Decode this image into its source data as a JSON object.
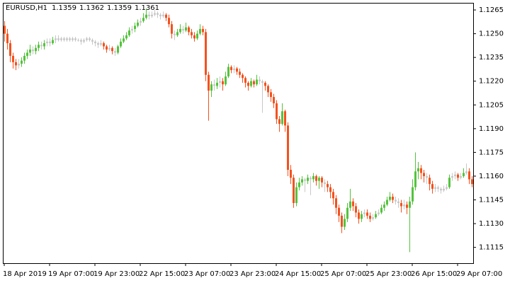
{
  "chart_data": {
    "type": "candlestick",
    "title": "EURUSD,H1",
    "quote": [
      1.1359,
      1.1362,
      1.1359,
      1.1361
    ],
    "colors": {
      "up": "#54c33c",
      "down": "#f4511e",
      "flat": "#c8c8c8"
    },
    "ylim": [
      1.1105,
      1.12695
    ],
    "yticks": [
      1.1265,
      {
        "value": 1.125,
        "label": "1.1250"
      },
      1.1235,
      {
        "value": 1.122,
        "label": "1.1220"
      },
      1.1205,
      {
        "value": 1.119,
        "label": "1.1190"
      },
      1.1175,
      {
        "value": 1.116,
        "label": "1.1160"
      },
      1.1145,
      {
        "value": 1.113,
        "label": "1.1130"
      },
      1.1115
    ],
    "xticks": [
      {
        "value": 0,
        "label": "18 Apr 2019"
      },
      {
        "value": 16,
        "label": "19 Apr 07:00"
      },
      {
        "value": 32,
        "label": "19 Apr 23:00"
      },
      {
        "value": 48,
        "label": "22 Apr 15:00"
      },
      {
        "value": 64,
        "label": "23 Apr 07:00"
      },
      {
        "value": 80,
        "label": "23 Apr 23:00"
      },
      {
        "value": 96,
        "label": "24 Apr 15:00"
      },
      {
        "value": 112,
        "label": "25 Apr 07:00"
      },
      {
        "value": 128,
        "label": "25 Apr 23:00"
      },
      {
        "value": 144,
        "label": "26 Apr 15:00"
      },
      {
        "value": 160,
        "label": "29 Apr 07:00"
      }
    ],
    "ohlc": [
      [
        1.1255,
        1.1258,
        1.1245,
        1.125
      ],
      [
        1.125,
        1.1253,
        1.124,
        1.1244
      ],
      [
        1.1244,
        1.1246,
        1.1232,
        1.1236
      ],
      [
        1.1236,
        1.1238,
        1.1228,
        1.1232
      ],
      [
        1.1232,
        1.1234,
        1.1227,
        1.123
      ],
      [
        1.123,
        1.1234,
        1.1228,
        1.1231
      ],
      [
        1.1231,
        1.1235,
        1.1229,
        1.1233
      ],
      [
        1.1233,
        1.1238,
        1.1231,
        1.1236
      ],
      [
        1.1236,
        1.124,
        1.1234,
        1.1238
      ],
      [
        1.1238,
        1.1243,
        1.1236,
        1.124
      ],
      [
        1.124,
        1.1242,
        1.1237,
        1.1239
      ],
      [
        1.1239,
        1.1243,
        1.1237,
        1.1241
      ],
      [
        1.1241,
        1.1245,
        1.1239,
        1.1243
      ],
      [
        1.1243,
        1.1245,
        1.124,
        1.1242
      ],
      [
        1.1242,
        1.1246,
        1.124,
        1.1244
      ],
      [
        1.1244,
        1.1247,
        1.1242,
        1.1245
      ],
      [
        1.1245,
        1.1247,
        1.1242,
        1.1244
      ],
      [
        1.1244,
        1.1248,
        1.1243,
        1.1246
      ],
      [
        1.1246,
        1.1249,
        1.1244,
        1.1247
      ],
      [
        1.1247,
        1.1249,
        1.1245,
        1.1246
      ],
      [
        1.1246,
        1.1248,
        1.1245,
        1.1247
      ],
      [
        1.1247,
        1.1248,
        1.1245,
        1.1246
      ],
      [
        1.1246,
        1.1248,
        1.1245,
        1.1247
      ],
      [
        1.1247,
        1.1248,
        1.1245,
        1.1246
      ],
      [
        1.1246,
        1.1248,
        1.1245,
        1.1247
      ],
      [
        1.1247,
        1.1248,
        1.1245,
        1.1246
      ],
      [
        1.1246,
        1.1247,
        1.1245,
        1.1246
      ],
      [
        1.1246,
        1.1247,
        1.1243,
        1.1245
      ],
      [
        1.1245,
        1.1247,
        1.1244,
        1.1246
      ],
      [
        1.1246,
        1.1248,
        1.1245,
        1.1247
      ],
      [
        1.1247,
        1.1248,
        1.1245,
        1.1246
      ],
      [
        1.1246,
        1.1247,
        1.1243,
        1.1245
      ],
      [
        1.1245,
        1.1246,
        1.1242,
        1.1244
      ],
      [
        1.1244,
        1.1245,
        1.1241,
        1.1243
      ],
      [
        1.1243,
        1.1246,
        1.1242,
        1.1244
      ],
      [
        1.1244,
        1.1245,
        1.124,
        1.1242
      ],
      [
        1.1242,
        1.1243,
        1.1238,
        1.124
      ],
      [
        1.124,
        1.1243,
        1.1239,
        1.1241
      ],
      [
        1.1241,
        1.1242,
        1.1237,
        1.1239
      ],
      [
        1.1239,
        1.1241,
        1.1236,
        1.1238
      ],
      [
        1.1238,
        1.1243,
        1.1237,
        1.1242
      ],
      [
        1.1242,
        1.1247,
        1.1241,
        1.1245
      ],
      [
        1.1245,
        1.1249,
        1.1244,
        1.1247
      ],
      [
        1.1247,
        1.1251,
        1.1246,
        1.1249
      ],
      [
        1.1249,
        1.1254,
        1.1248,
        1.1252
      ],
      [
        1.1252,
        1.1255,
        1.125,
        1.1253
      ],
      [
        1.1253,
        1.1257,
        1.1251,
        1.1255
      ],
      [
        1.1255,
        1.1259,
        1.1254,
        1.1257
      ],
      [
        1.1257,
        1.126,
        1.1255,
        1.1258
      ],
      [
        1.1258,
        1.1263,
        1.1257,
        1.126
      ],
      [
        1.126,
        1.1266,
        1.1259,
        1.1262
      ],
      [
        1.1262,
        1.1264,
        1.1259,
        1.1261
      ],
      [
        1.1261,
        1.1264,
        1.126,
        1.1262
      ],
      [
        1.1262,
        1.1265,
        1.1261,
        1.1263
      ],
      [
        1.1263,
        1.1264,
        1.126,
        1.1262
      ],
      [
        1.1262,
        1.1263,
        1.1259,
        1.1261
      ],
      [
        1.1261,
        1.1264,
        1.126,
        1.1262
      ],
      [
        1.1262,
        1.1263,
        1.1258,
        1.126
      ],
      [
        1.126,
        1.1262,
        1.1254,
        1.1256
      ],
      [
        1.1256,
        1.1258,
        1.1247,
        1.125
      ],
      [
        1.125,
        1.1252,
        1.1246,
        1.1249
      ],
      [
        1.1249,
        1.1253,
        1.1248,
        1.1251
      ],
      [
        1.1251,
        1.1256,
        1.125,
        1.1253
      ],
      [
        1.1253,
        1.1255,
        1.125,
        1.1252
      ],
      [
        1.1252,
        1.1257,
        1.1251,
        1.1254
      ],
      [
        1.1254,
        1.1255,
        1.1249,
        1.1251
      ],
      [
        1.1251,
        1.1253,
        1.1247,
        1.1249
      ],
      [
        1.1249,
        1.1251,
        1.1245,
        1.1247
      ],
      [
        1.1247,
        1.1252,
        1.1246,
        1.125
      ],
      [
        1.125,
        1.1256,
        1.1249,
        1.1253
      ],
      [
        1.1253,
        1.1255,
        1.1249,
        1.1251
      ],
      [
        1.1251,
        1.1253,
        1.122,
        1.1224
      ],
      [
        1.1224,
        1.1226,
        1.1195,
        1.1214
      ],
      [
        1.1214,
        1.122,
        1.121,
        1.1218
      ],
      [
        1.1218,
        1.1221,
        1.1214,
        1.1217
      ],
      [
        1.1217,
        1.1222,
        1.1215,
        1.1219
      ],
      [
        1.1219,
        1.1223,
        1.1216,
        1.122
      ],
      [
        1.122,
        1.1222,
        1.1214,
        1.1218
      ],
      [
        1.1218,
        1.1226,
        1.1217,
        1.1223
      ],
      [
        1.1223,
        1.1231,
        1.1222,
        1.1229
      ],
      [
        1.1229,
        1.123,
        1.1225,
        1.1227
      ],
      [
        1.1227,
        1.123,
        1.1225,
        1.1228
      ],
      [
        1.1228,
        1.1229,
        1.1224,
        1.1226
      ],
      [
        1.1226,
        1.1228,
        1.1222,
        1.1224
      ],
      [
        1.1224,
        1.1225,
        1.1219,
        1.1222
      ],
      [
        1.1222,
        1.1223,
        1.1216,
        1.1219
      ],
      [
        1.1219,
        1.122,
        1.1214,
        1.1217
      ],
      [
        1.1217,
        1.1222,
        1.1216,
        1.122
      ],
      [
        1.122,
        1.1221,
        1.1216,
        1.1218
      ],
      [
        1.1218,
        1.1224,
        1.1217,
        1.1221
      ],
      [
        1.1221,
        1.1223,
        1.1218,
        1.122
      ],
      [
        1.122,
        1.1221,
        1.12,
        1.1219
      ],
      [
        1.1219,
        1.122,
        1.1214,
        1.1217
      ],
      [
        1.1217,
        1.1218,
        1.121,
        1.1213
      ],
      [
        1.1213,
        1.1215,
        1.1207,
        1.121
      ],
      [
        1.121,
        1.1212,
        1.1203,
        1.1206
      ],
      [
        1.1206,
        1.1208,
        1.1193,
        1.1196
      ],
      [
        1.1196,
        1.1198,
        1.1188,
        1.1193
      ],
      [
        1.1193,
        1.1206,
        1.1192,
        1.1201
      ],
      [
        1.1201,
        1.1202,
        1.1188,
        1.1192
      ],
      [
        1.1192,
        1.1194,
        1.116,
        1.1164
      ],
      [
        1.1164,
        1.1167,
        1.1155,
        1.1159
      ],
      [
        1.1159,
        1.1161,
        1.114,
        1.1143
      ],
      [
        1.1143,
        1.1156,
        1.1141,
        1.1153
      ],
      [
        1.1153,
        1.1159,
        1.1151,
        1.1156
      ],
      [
        1.1156,
        1.116,
        1.1154,
        1.1158
      ],
      [
        1.1158,
        1.1159,
        1.115,
        1.1157
      ],
      [
        1.1157,
        1.1161,
        1.1155,
        1.1159
      ],
      [
        1.1159,
        1.116,
        1.1148,
        1.1158
      ],
      [
        1.1158,
        1.1162,
        1.1156,
        1.116
      ],
      [
        1.116,
        1.1161,
        1.1154,
        1.1157
      ],
      [
        1.1157,
        1.116,
        1.1152,
        1.1159
      ],
      [
        1.1159,
        1.116,
        1.1153,
        1.1156
      ],
      [
        1.1156,
        1.1158,
        1.115,
        1.1155
      ],
      [
        1.1155,
        1.1157,
        1.115,
        1.1153
      ],
      [
        1.1153,
        1.1155,
        1.1146,
        1.115
      ],
      [
        1.115,
        1.1152,
        1.1142,
        1.1146
      ],
      [
        1.1146,
        1.1148,
        1.1136,
        1.114
      ],
      [
        1.114,
        1.1142,
        1.1131,
        1.1135
      ],
      [
        1.1135,
        1.1137,
        1.1124,
        1.1128
      ],
      [
        1.1128,
        1.1136,
        1.1126,
        1.1133
      ],
      [
        1.1133,
        1.1143,
        1.1131,
        1.114
      ],
      [
        1.114,
        1.1152,
        1.1138,
        1.1144
      ],
      [
        1.1144,
        1.1146,
        1.1138,
        1.1141
      ],
      [
        1.1141,
        1.1143,
        1.1134,
        1.1137
      ],
      [
        1.1137,
        1.1139,
        1.113,
        1.1133
      ],
      [
        1.1133,
        1.1138,
        1.1131,
        1.1136
      ],
      [
        1.1136,
        1.1139,
        1.1134,
        1.1137
      ],
      [
        1.1137,
        1.1139,
        1.1133,
        1.1135
      ],
      [
        1.1135,
        1.1137,
        1.1131,
        1.1133
      ],
      [
        1.1133,
        1.1136,
        1.1132,
        1.1134
      ],
      [
        1.1134,
        1.1138,
        1.1133,
        1.1136
      ],
      [
        1.1136,
        1.1139,
        1.1135,
        1.1137
      ],
      [
        1.1137,
        1.1142,
        1.1136,
        1.114
      ],
      [
        1.114,
        1.1144,
        1.1138,
        1.1142
      ],
      [
        1.1142,
        1.1147,
        1.1141,
        1.1145
      ],
      [
        1.1145,
        1.115,
        1.1144,
        1.1147
      ],
      [
        1.1147,
        1.1149,
        1.1143,
        1.1145
      ],
      [
        1.1145,
        1.1147,
        1.1142,
        1.1144
      ],
      [
        1.1144,
        1.1146,
        1.114,
        1.1143
      ],
      [
        1.1143,
        1.1145,
        1.1137,
        1.1141
      ],
      [
        1.1141,
        1.1145,
        1.1139,
        1.1142
      ],
      [
        1.1142,
        1.1144,
        1.1136,
        1.114
      ],
      [
        1.114,
        1.1147,
        1.1112,
        1.1144
      ],
      [
        1.1144,
        1.1158,
        1.1142,
        1.1153
      ],
      [
        1.1153,
        1.1175,
        1.1151,
        1.1163
      ],
      [
        1.1163,
        1.1169,
        1.1158,
        1.1165
      ],
      [
        1.1165,
        1.1167,
        1.1158,
        1.1162
      ],
      [
        1.1162,
        1.1164,
        1.1156,
        1.116
      ],
      [
        1.116,
        1.1162,
        1.1155,
        1.1159
      ],
      [
        1.1159,
        1.1161,
        1.1151,
        1.1155
      ],
      [
        1.1155,
        1.1157,
        1.1149,
        1.1152
      ],
      [
        1.1152,
        1.1155,
        1.115,
        1.1153
      ],
      [
        1.1153,
        1.1154,
        1.115,
        1.1152
      ],
      [
        1.1152,
        1.1153,
        1.1149,
        1.1151
      ],
      [
        1.1151,
        1.1154,
        1.115,
        1.1152
      ],
      [
        1.1152,
        1.1155,
        1.1151,
        1.1153
      ],
      [
        1.1153,
        1.1161,
        1.1152,
        1.1159
      ],
      [
        1.1159,
        1.1162,
        1.1157,
        1.116
      ],
      [
        1.116,
        1.1163,
        1.1158,
        1.1161
      ],
      [
        1.1161,
        1.1162,
        1.1157,
        1.1159
      ],
      [
        1.1159,
        1.1162,
        1.1158,
        1.116
      ],
      [
        1.116,
        1.1165,
        1.1159,
        1.1162
      ],
      [
        1.1162,
        1.1168,
        1.1161,
        1.1163
      ],
      [
        1.1163,
        1.1165,
        1.1155,
        1.1158
      ],
      [
        1.1158,
        1.116,
        1.1153,
        1.1155
      ]
    ]
  }
}
